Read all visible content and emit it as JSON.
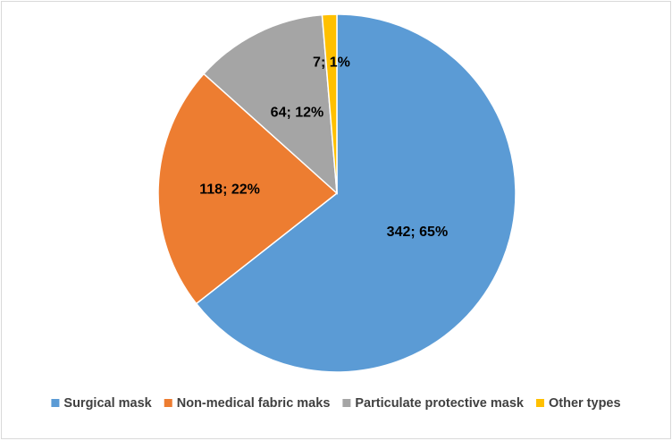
{
  "chart_data": {
    "type": "pie",
    "categories": [
      "Surgical mask",
      "Non-medical fabric maks",
      "Particulate protective mask",
      "Other types"
    ],
    "values": [
      342,
      118,
      64,
      7
    ],
    "value_labels": [
      "342; 65%",
      "118; 22%",
      "64; 12%",
      "7; 1%"
    ],
    "colors": [
      "#5b9bd5",
      "#ed7d31",
      "#a5a5a5",
      "#ffc000"
    ],
    "legend": "bottom"
  }
}
